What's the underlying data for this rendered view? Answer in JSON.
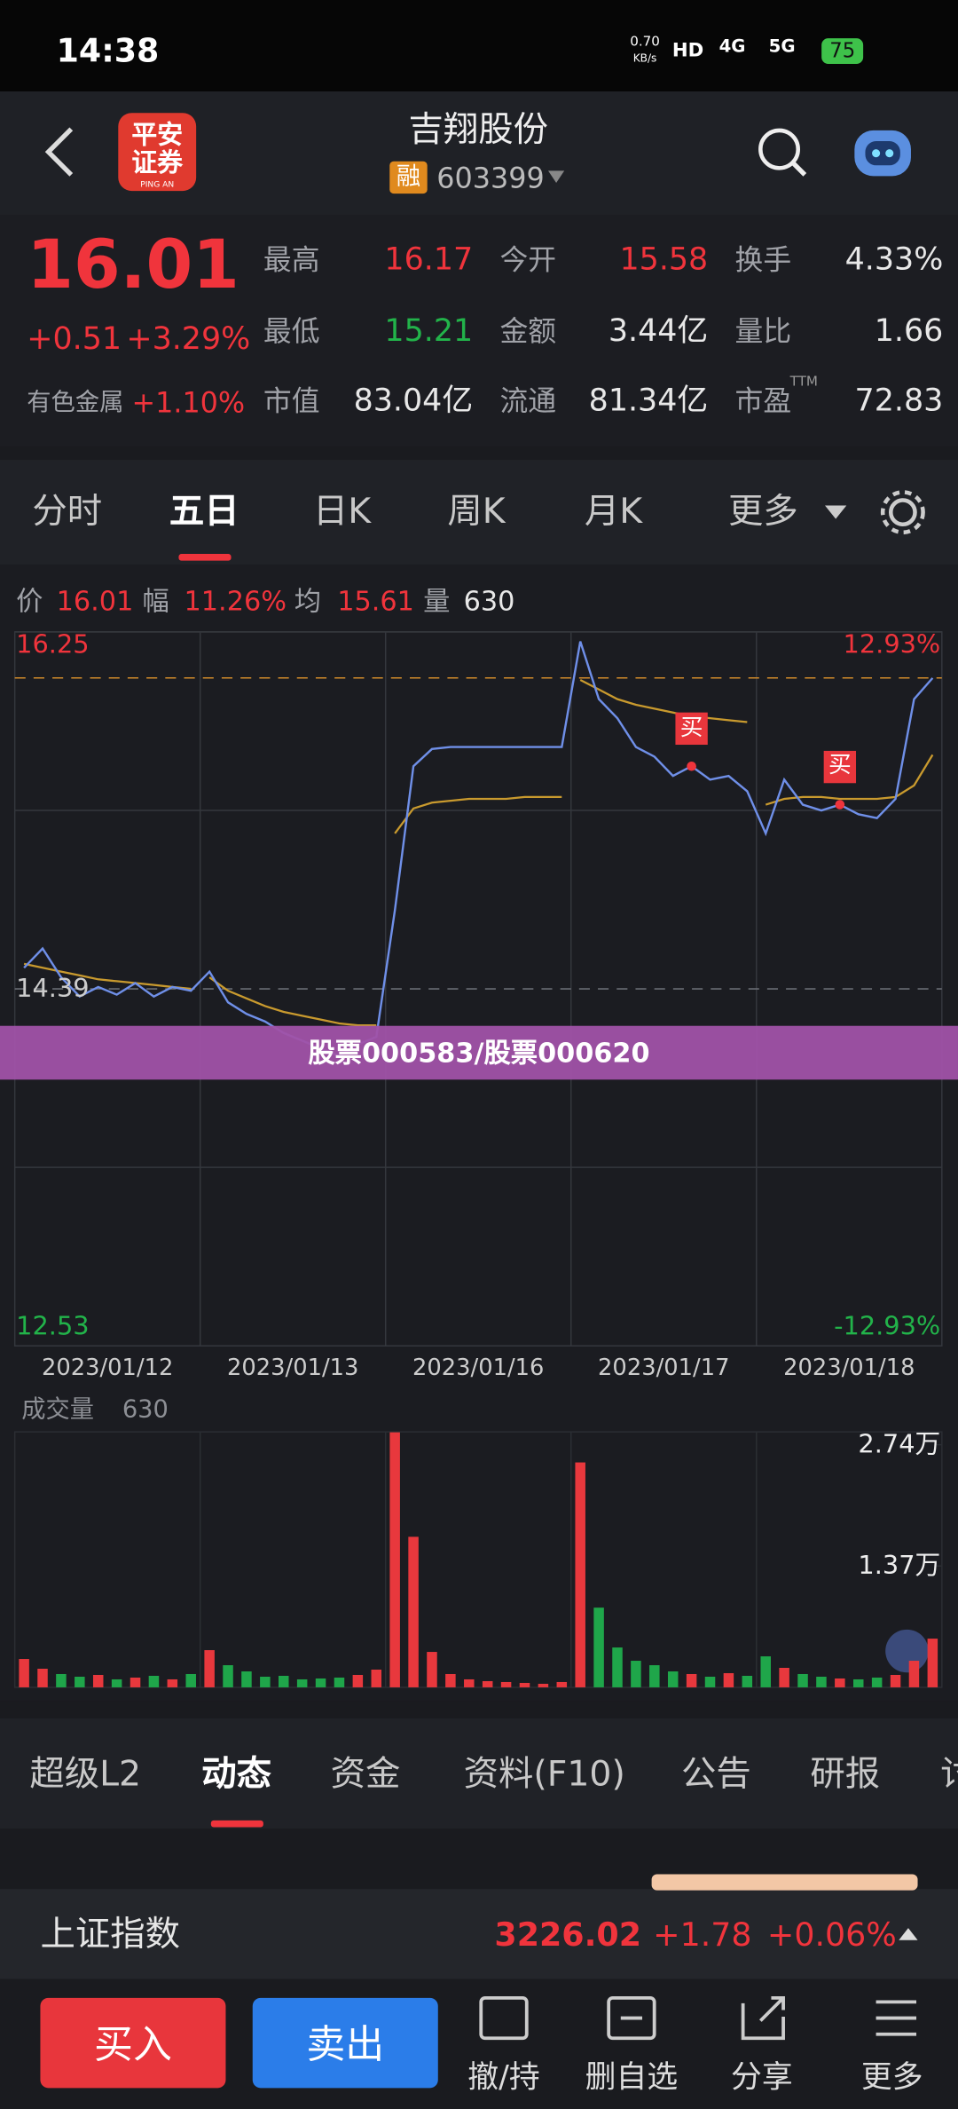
{
  "status_bar": {
    "time": "14:38",
    "net_speed": "0.70",
    "net_unit": "KB/s",
    "hd": "HD",
    "network1": "4G",
    "network2": "5G",
    "battery": "75"
  },
  "header": {
    "logo": [
      "平安",
      "证券"
    ],
    "logo_sub": "PING AN",
    "title": "吉翔股份",
    "tag": "融",
    "code": "603399"
  },
  "quote": {
    "price": "16.01",
    "change": "+0.51",
    "change_pct": "+3.29%",
    "sector": "有色金属",
    "sector_change": "+1.10%",
    "stats": [
      [
        "最高",
        "16.17"
      ],
      [
        "今开",
        "15.58"
      ],
      [
        "换手",
        "4.33%"
      ],
      [
        "最低",
        "15.21"
      ],
      [
        "金额",
        "3.44亿"
      ],
      [
        "量比",
        "1.66"
      ],
      [
        "市值",
        "83.04亿"
      ],
      [
        "流通",
        "81.34亿"
      ],
      [
        "市盈",
        "72.83"
      ]
    ],
    "pe_suffix": "TTM"
  },
  "tabs": [
    "分时",
    "五日",
    "日K",
    "周K",
    "月K",
    "更多"
  ],
  "summary": [
    [
      "价",
      "16.01"
    ],
    [
      "幅",
      "11.26%"
    ],
    [
      "均",
      "15.61"
    ],
    [
      "量",
      "630"
    ]
  ],
  "chart_data": [
    {
      "type": "line",
      "day_labels": [
        "2023/01/12",
        "2023/01/13",
        "2023/01/16",
        "2023/01/17",
        "2023/01/18"
      ],
      "ylim": [
        12.53,
        16.25
      ],
      "yticks": [
        16.25,
        14.39,
        12.53
      ],
      "y2lim": [
        -12.93,
        12.93
      ],
      "y2ticks": [
        {
          "value": 12.93,
          "label": "12.93%"
        },
        {
          "value": -12.93,
          "label": "-12.93%"
        }
      ],
      "grid_rows": 4,
      "series": [
        {
          "color": "#6f8fe8",
          "values": [
            14.5,
            14.6,
            14.45,
            14.35,
            14.4,
            14.36,
            14.42,
            14.35,
            14.4,
            14.38,
            14.48,
            14.32,
            14.26,
            14.22,
            14.16,
            14.12,
            14.08,
            14.04,
            14.1,
            14.14,
            14.8,
            15.55,
            15.64,
            15.65,
            15.65,
            15.65,
            15.65,
            15.65,
            15.65,
            15.65,
            16.2,
            15.9,
            15.8,
            15.65,
            15.6,
            15.5,
            15.55,
            15.48,
            15.5,
            15.42,
            15.2,
            15.48,
            15.35,
            15.32,
            15.35,
            15.3,
            15.28,
            15.38,
            15.9,
            16.01
          ]
        },
        {
          "color": "#c99a2e",
          "values": [
            14.52,
            14.5,
            14.48,
            14.46,
            14.44,
            14.43,
            14.42,
            14.41,
            14.4,
            14.39,
            14.45,
            14.38,
            14.34,
            14.3,
            14.27,
            14.25,
            14.23,
            14.21,
            14.2,
            14.2,
            15.2,
            15.33,
            15.36,
            15.37,
            15.38,
            15.38,
            15.38,
            15.39,
            15.39,
            15.39,
            16.0,
            15.95,
            15.9,
            15.87,
            15.85,
            15.83,
            15.81,
            15.8,
            15.79,
            15.78,
            15.35,
            15.38,
            15.39,
            15.39,
            15.38,
            15.38,
            15.38,
            15.39,
            15.45,
            15.61
          ]
        }
      ],
      "signals": [
        {
          "label": "买",
          "point": 36
        },
        {
          "label": "买",
          "point": 44
        }
      ]
    },
    {
      "type": "bar",
      "title": "成交量",
      "title_value": "630",
      "ylim": [
        0,
        28850
      ],
      "yticks": [
        {
          "value": 27400,
          "label": "2.74万"
        },
        {
          "value": 13700,
          "label": "1.37万"
        }
      ],
      "up_color": "#e8383d",
      "down_color": "#1fa64a",
      "values": [
        3200,
        2100,
        1500,
        1200,
        1400,
        900,
        1100,
        1300,
        900,
        1500,
        4200,
        2500,
        1800,
        1200,
        1300,
        900,
        1000,
        1100,
        1400,
        2000,
        28800,
        17000,
        4000,
        1500,
        900,
        700,
        600,
        500,
        400,
        600,
        25400,
        9000,
        4500,
        3000,
        2500,
        1800,
        1500,
        1200,
        1600,
        1300,
        3500,
        2200,
        1500,
        1200,
        1000,
        900,
        1100,
        1400,
        3000,
        5500
      ]
    }
  ],
  "overlay": "股票000583/股票000620",
  "news_tabs": [
    "超级L2",
    "动态",
    "资金",
    "资料(F10)",
    "公告",
    "研报",
    "讨"
  ],
  "index_bar": {
    "name": "上证指数",
    "value": "3226.02",
    "change": "+1.78",
    "change_pct": "+0.06%"
  },
  "actions": {
    "buy": "买入",
    "sell": "卖出",
    "items": [
      "撤/持",
      "删自选",
      "分享",
      "更多"
    ]
  }
}
